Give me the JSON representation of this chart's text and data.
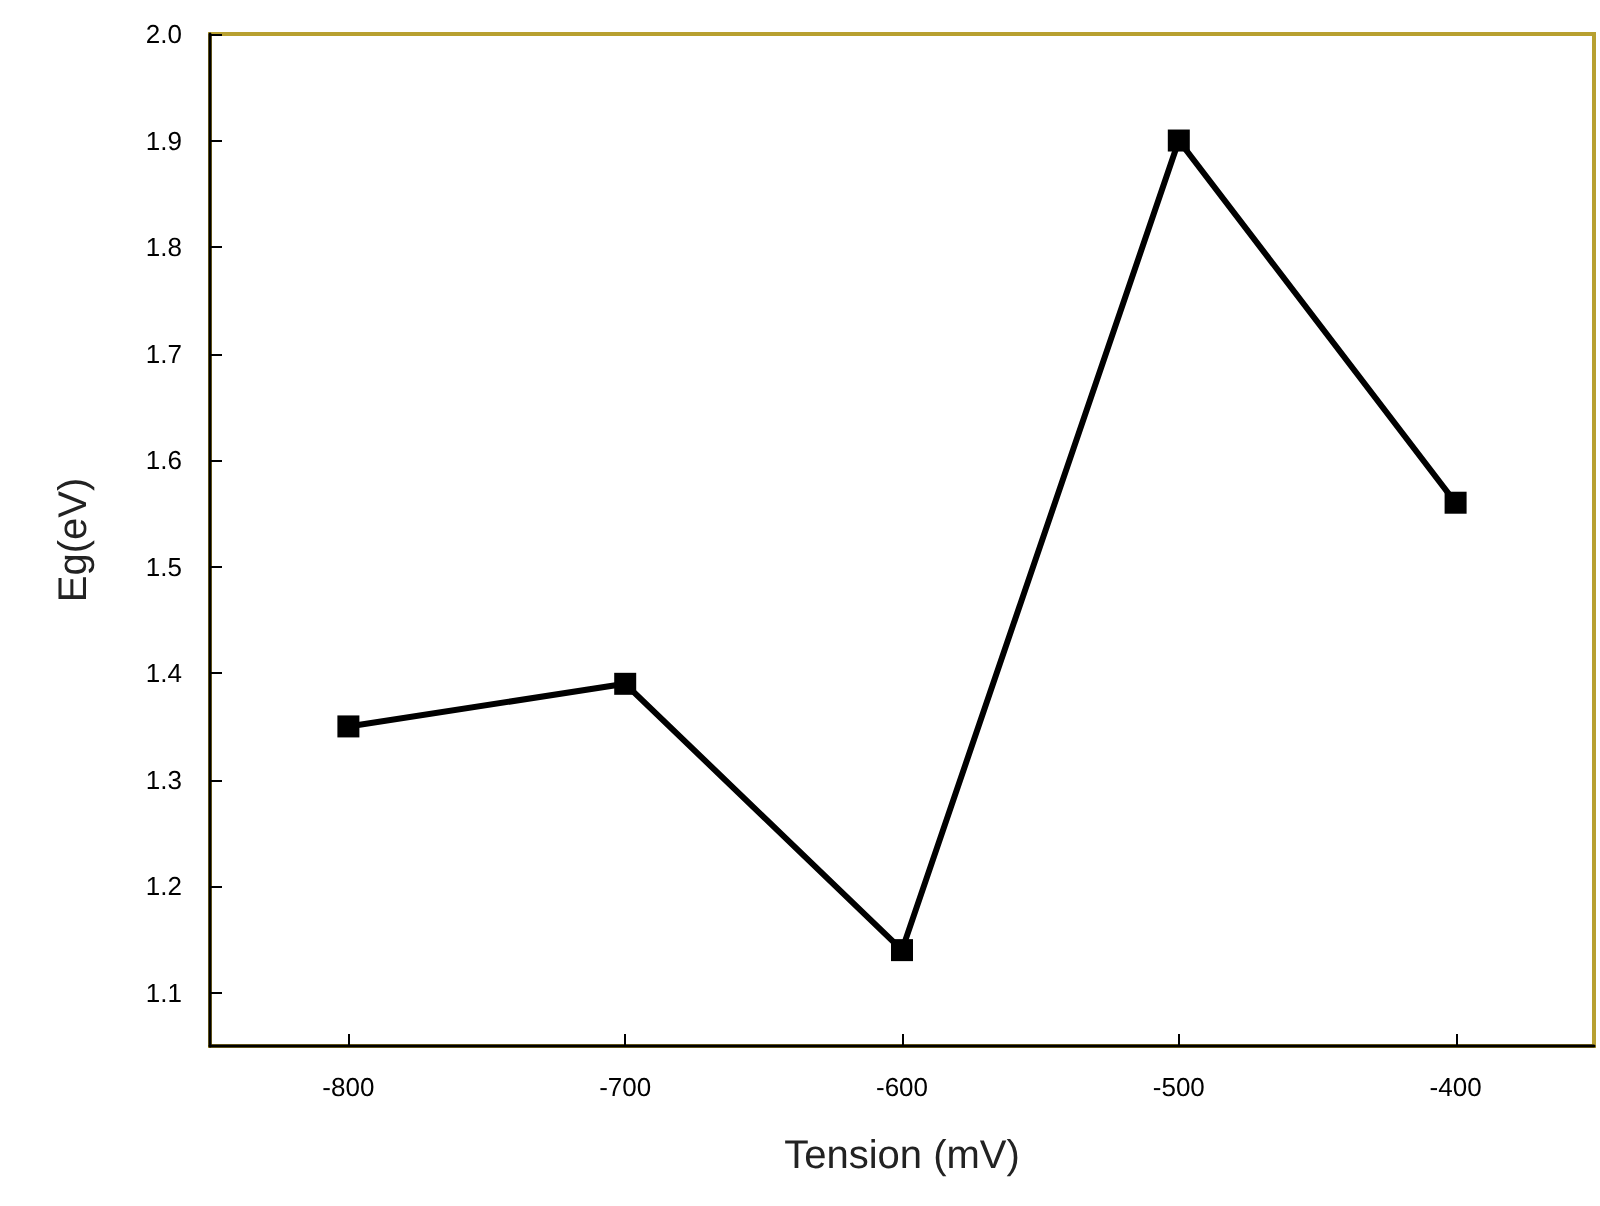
{
  "chart_data": {
    "type": "line",
    "xlabel": "Tension (mV)",
    "ylabel": "Eg(eV)",
    "x": [
      -800,
      -700,
      -600,
      -500,
      -400
    ],
    "series": [
      {
        "color": "#000000",
        "values": [
          1.35,
          1.39,
          1.14,
          1.9,
          1.56
        ]
      }
    ],
    "xlim": [
      -850,
      -350
    ],
    "xticks": [
      -800,
      -700,
      -600,
      -500,
      -400
    ],
    "ylim": [
      1.05,
      2.0
    ],
    "yticks": [
      1.1,
      1.2,
      1.3,
      1.4,
      1.5,
      1.6,
      1.7,
      1.8,
      1.9,
      {
        "value": 2,
        "label": "2.0"
      }
    ],
    "grid": false,
    "marker": "square",
    "line_style": "solid"
  }
}
